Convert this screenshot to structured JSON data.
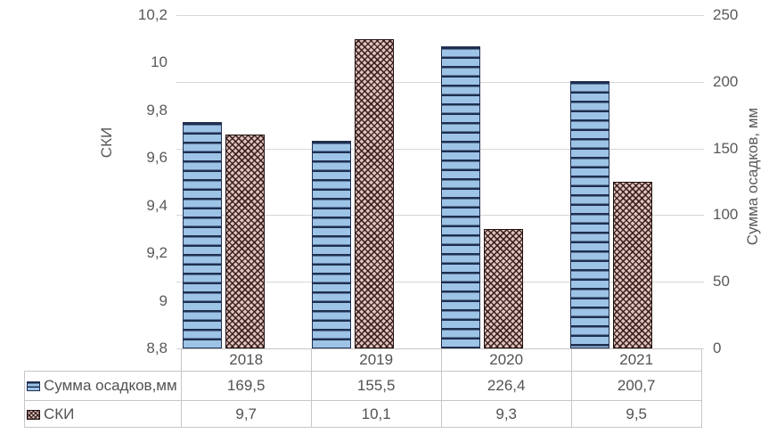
{
  "chart_data": {
    "type": "bar",
    "title": "",
    "categories": [
      "2018",
      "2019",
      "2020",
      "2021"
    ],
    "series": [
      {
        "name": "Сумма осадков,мм",
        "axis": "right",
        "values": [
          169.5,
          155.5,
          226.4,
          200.7
        ],
        "pattern": "horizontal-stripes",
        "fill": "#9dc3e6",
        "stroke": "#1e2f50"
      },
      {
        "name": "СКИ",
        "axis": "left",
        "values": [
          9.7,
          10.1,
          9.3,
          9.5
        ],
        "pattern": "diagonal-weave",
        "fill": "#e3c4bd",
        "stroke": "#20100e"
      }
    ],
    "left_axis": {
      "title": "СКИ",
      "min": 8.8,
      "max": 10.2,
      "step": 0.2,
      "ticks": [
        "10,2",
        "10",
        "9,8",
        "9,6",
        "9,4",
        "9,2",
        "9",
        "8,8"
      ]
    },
    "right_axis": {
      "title": "Сумма осадков, мм",
      "min": 0,
      "max": 250,
      "step": 50,
      "ticks": [
        "250",
        "200",
        "150",
        "100",
        "50",
        "0"
      ]
    },
    "gridlines": true,
    "legend_position": "data-table"
  },
  "table": {
    "corner": "",
    "columns": [
      "2018",
      "2019",
      "2020",
      "2021"
    ],
    "rows": [
      {
        "label": "Сумма осадков,мм",
        "swatch": "blue-stripes",
        "values": [
          "169,5",
          "155,5",
          "226,4",
          "200,7"
        ]
      },
      {
        "label": "СКИ",
        "swatch": "pink-weave",
        "values": [
          "9,7",
          "10,1",
          "9,3",
          "9,5"
        ]
      }
    ]
  },
  "colors": {
    "background": "#ffffff",
    "grid": "#d6d6d6",
    "axis_text": "#595959",
    "table_border": "#c6c6c6",
    "table_text": "#525252",
    "series1_fill": "#9dc3e6",
    "series1_stroke": "#1e2f50",
    "series2_fill": "#e3c4bd",
    "series2_stroke": "#20100e"
  }
}
